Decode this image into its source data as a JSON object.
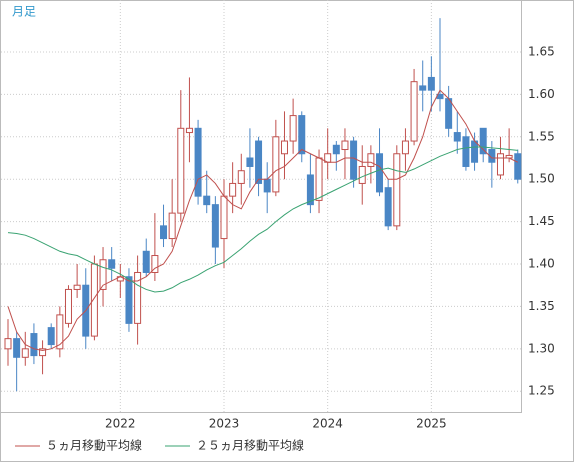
{
  "chart_data": {
    "type": "candlestick",
    "label": "月足",
    "categories": [
      null,
      null,
      null,
      null,
      null,
      null,
      null,
      null,
      null,
      null,
      null,
      null,
      null,
      "2022",
      null,
      null,
      null,
      null,
      null,
      null,
      null,
      null,
      null,
      null,
      null,
      "2023",
      null,
      null,
      null,
      null,
      null,
      null,
      null,
      null,
      null,
      null,
      null,
      "2024",
      null,
      null,
      null,
      null,
      null,
      null,
      null,
      null,
      null,
      null,
      null,
      "2025",
      null,
      null,
      null,
      null,
      null,
      null,
      null,
      null,
      null,
      null
    ],
    "open": [
      1.3,
      1.312,
      1.29,
      1.318,
      1.292,
      1.325,
      1.3,
      1.33,
      1.37,
      1.375,
      1.315,
      1.37,
      1.405,
      1.38,
      1.385,
      1.33,
      1.415,
      1.39,
      1.445,
      1.43,
      1.46,
      1.555,
      1.56,
      1.48,
      1.47,
      1.43,
      1.48,
      1.495,
      1.525,
      1.545,
      1.5,
      1.485,
      1.53,
      1.545,
      1.575,
      1.505,
      1.475,
      1.52,
      1.54,
      1.535,
      1.545,
      1.495,
      1.515,
      1.53,
      1.49,
      1.445,
      1.53,
      1.545,
      1.61,
      1.62,
      1.6,
      1.595,
      1.555,
      1.55,
      1.545,
      1.56,
      1.535,
      1.505,
      1.525,
      1.53
    ],
    "high": [
      1.335,
      1.32,
      1.32,
      1.33,
      1.31,
      1.33,
      1.35,
      1.375,
      1.4,
      1.395,
      1.41,
      1.42,
      1.42,
      1.4,
      1.395,
      1.41,
      1.43,
      1.46,
      1.47,
      1.5,
      1.605,
      1.62,
      1.57,
      1.51,
      1.48,
      1.5,
      1.52,
      1.53,
      1.56,
      1.55,
      1.52,
      1.57,
      1.58,
      1.595,
      1.58,
      1.53,
      1.535,
      1.56,
      1.545,
      1.56,
      1.55,
      1.54,
      1.54,
      1.56,
      1.5,
      1.54,
      1.56,
      1.63,
      1.64,
      1.645,
      1.69,
      1.61,
      1.58,
      1.56,
      1.555,
      1.56,
      1.545,
      1.55,
      1.56,
      1.535
    ],
    "low": [
      1.28,
      1.25,
      1.28,
      1.282,
      1.27,
      1.3,
      1.29,
      1.325,
      1.36,
      1.3,
      1.31,
      1.35,
      1.38,
      1.36,
      1.32,
      1.305,
      1.385,
      1.38,
      1.42,
      1.42,
      1.45,
      1.52,
      1.47,
      1.46,
      1.4,
      1.395,
      1.46,
      1.47,
      1.49,
      1.48,
      1.46,
      1.48,
      1.5,
      1.53,
      1.52,
      1.46,
      1.46,
      1.5,
      1.51,
      1.5,
      1.49,
      1.47,
      1.495,
      1.48,
      1.44,
      1.44,
      1.51,
      1.54,
      1.58,
      1.58,
      1.58,
      1.55,
      1.53,
      1.51,
      1.51,
      1.52,
      1.49,
      1.5,
      1.52,
      1.495
    ],
    "close": [
      1.312,
      1.29,
      1.3,
      1.292,
      1.3,
      1.305,
      1.34,
      1.37,
      1.375,
      1.315,
      1.4,
      1.405,
      1.395,
      1.385,
      1.33,
      1.39,
      1.39,
      1.41,
      1.43,
      1.46,
      1.56,
      1.56,
      1.48,
      1.47,
      1.42,
      1.48,
      1.495,
      1.51,
      1.515,
      1.495,
      1.485,
      1.55,
      1.545,
      1.575,
      1.53,
      1.47,
      1.525,
      1.53,
      1.53,
      1.545,
      1.5,
      1.515,
      1.53,
      1.485,
      1.445,
      1.53,
      1.545,
      1.615,
      1.605,
      1.605,
      1.595,
      1.56,
      1.545,
      1.515,
      1.52,
      1.53,
      1.52,
      1.53,
      1.528,
      1.5
    ],
    "up_color": "#c0504d",
    "down_color": "#4a86c5",
    "lines": [
      {
        "name": "５ヵ月移動平均線",
        "color": "#c0504d",
        "values": [
          1.35,
          1.32,
          1.305,
          1.3,
          1.298,
          1.3,
          1.305,
          1.315,
          1.335,
          1.345,
          1.36,
          1.375,
          1.38,
          1.385,
          1.38,
          1.38,
          1.385,
          1.395,
          1.4,
          1.415,
          1.445,
          1.475,
          1.5,
          1.505,
          1.495,
          1.48,
          1.47,
          1.465,
          1.485,
          1.5,
          1.5,
          1.51,
          1.515,
          1.525,
          1.535,
          1.53,
          1.525,
          1.52,
          1.52,
          1.525,
          1.525,
          1.52,
          1.52,
          1.515,
          1.5,
          1.5,
          1.505,
          1.525,
          1.55,
          1.585,
          1.605,
          1.595,
          1.58,
          1.565,
          1.545,
          1.535,
          1.525,
          1.525,
          1.525,
          1.52
        ]
      },
      {
        "name": "２５ヵ月移動平均線",
        "color": "#3aa372",
        "values": [
          1.437,
          1.436,
          1.434,
          1.43,
          1.425,
          1.42,
          1.415,
          1.412,
          1.41,
          1.405,
          1.4,
          1.396,
          1.393,
          1.388,
          1.382,
          1.375,
          1.37,
          1.367,
          1.368,
          1.372,
          1.378,
          1.382,
          1.387,
          1.393,
          1.398,
          1.402,
          1.41,
          1.418,
          1.427,
          1.435,
          1.441,
          1.45,
          1.458,
          1.465,
          1.47,
          1.474,
          1.478,
          1.483,
          1.488,
          1.493,
          1.498,
          1.503,
          1.507,
          1.511,
          1.513,
          1.51,
          1.508,
          1.512,
          1.517,
          1.522,
          1.527,
          1.531,
          1.535,
          1.537,
          1.538,
          1.538,
          1.537,
          1.536,
          1.535,
          1.534
        ]
      }
    ],
    "ylim": [
      1.2255,
      1.7113
    ],
    "yticks": [
      1.25,
      {
        "value": 1.3,
        "label": "1.30"
      },
      1.35,
      {
        "value": 1.4,
        "label": "1.40"
      },
      1.45,
      {
        "value": 1.5,
        "label": "1.50"
      },
      1.55,
      {
        "value": 1.6,
        "label": "1.60"
      },
      1.65
    ],
    "grid": true
  }
}
